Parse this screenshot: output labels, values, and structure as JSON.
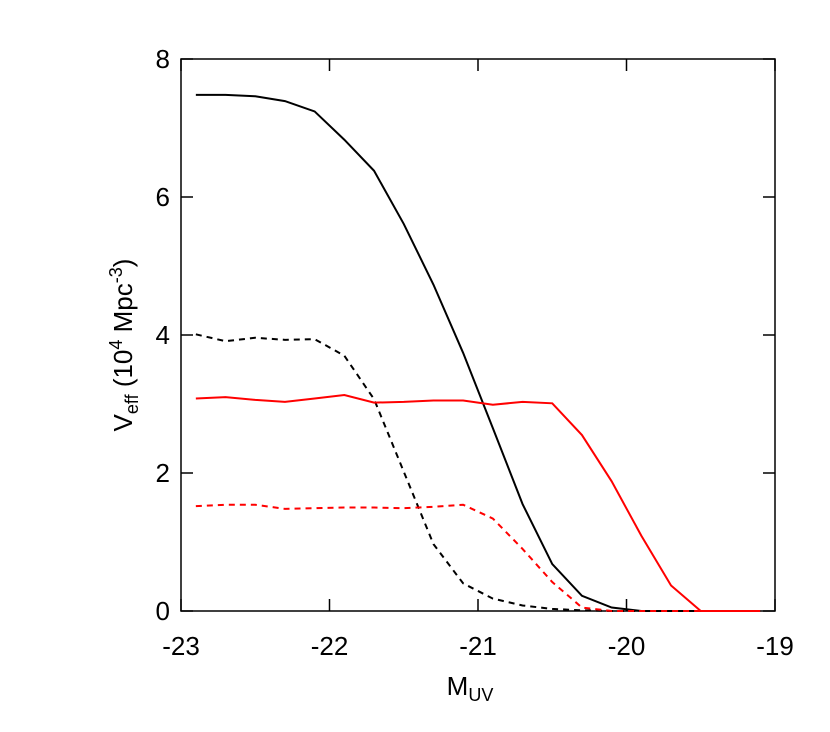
{
  "chart_data": {
    "type": "line",
    "xlabel_parts": [
      "M",
      "UV"
    ],
    "ylabel_parts": [
      "V",
      "eff",
      " (10",
      "4",
      " Mpc",
      "-3",
      ")"
    ],
    "x": [
      -22.9,
      -22.7,
      -22.5,
      -22.3,
      -22.1,
      -21.9,
      -21.7,
      -21.5,
      -21.3,
      -21.1,
      -20.9,
      -20.7,
      -20.5,
      -20.3,
      -20.1,
      -19.9,
      -19.7,
      -19.5,
      -19.3,
      -19.1
    ],
    "series": [
      {
        "color": "#000000",
        "linestyle": "solid",
        "values": [
          7.48,
          7.48,
          7.46,
          7.39,
          7.24,
          6.83,
          6.38,
          5.61,
          4.73,
          3.74,
          2.65,
          1.55,
          0.68,
          0.22,
          0.05,
          0,
          0,
          0,
          0,
          0
        ]
      },
      {
        "color": "#000000",
        "linestyle": "dashed",
        "values": [
          4.01,
          3.91,
          3.96,
          3.93,
          3.94,
          3.7,
          3.07,
          2.02,
          0.97,
          0.4,
          0.18,
          0.08,
          0.03,
          0.01,
          0,
          0,
          0,
          0,
          0,
          0
        ]
      },
      {
        "color": "#ff0000",
        "linestyle": "solid",
        "values": [
          3.08,
          3.1,
          3.06,
          3.03,
          3.08,
          3.13,
          3.02,
          3.03,
          3.05,
          3.05,
          2.99,
          3.03,
          3.01,
          2.55,
          1.88,
          1.09,
          0.37,
          0,
          0,
          0
        ]
      },
      {
        "color": "#ff0000",
        "linestyle": "dashed",
        "values": [
          1.52,
          1.54,
          1.54,
          1.48,
          1.49,
          1.5,
          1.5,
          1.49,
          1.51,
          1.54,
          1.34,
          0.9,
          0.42,
          0.05,
          0,
          0,
          0,
          0,
          0,
          0
        ]
      }
    ],
    "xlim": [
      -23,
      -19
    ],
    "xticks": [
      -23,
      -22,
      -21,
      -20,
      -19
    ],
    "ylim": [
      0,
      8
    ],
    "yticks": [
      0,
      2,
      4,
      6,
      8
    ]
  }
}
